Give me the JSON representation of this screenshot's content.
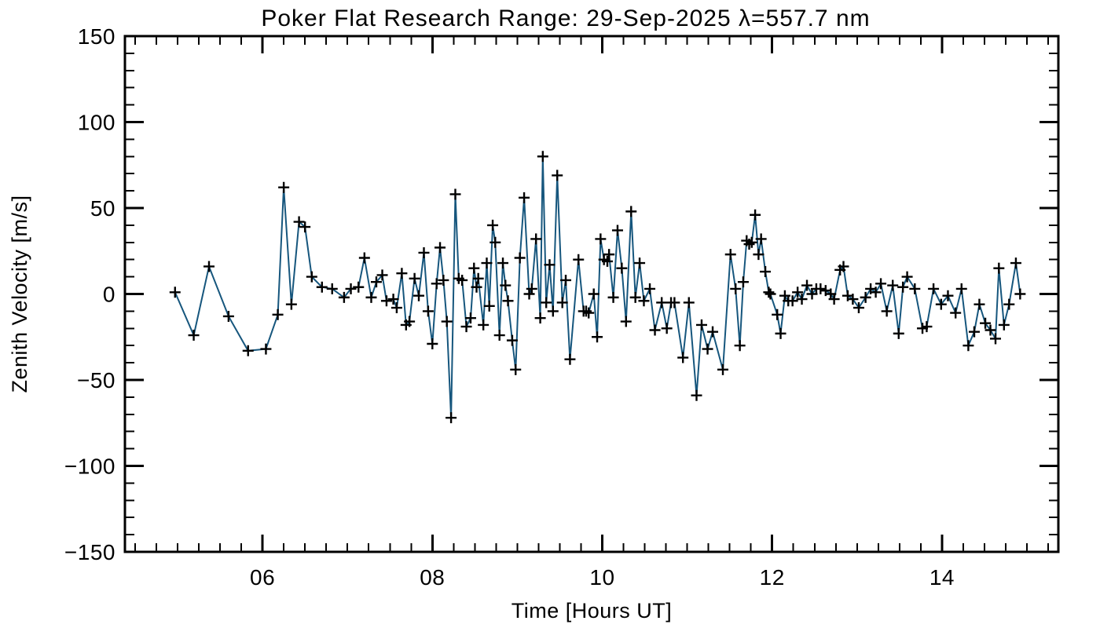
{
  "figure": {
    "background": "#ffffff"
  },
  "chart_data": {
    "type": "line",
    "title": "Poker Flat Research Range: 29-Sep-2025 λ=557.7 nm",
    "xlabel": "Time [Hours UT]",
    "ylabel": "Zenith Velocity [m/s]",
    "xlim": [
      4.38,
      15.37
    ],
    "ylim": [
      -150,
      150
    ],
    "xticks": [
      6,
      8,
      10,
      12,
      14
    ],
    "xtick_labels": [
      "06",
      "08",
      "10",
      "12",
      "14"
    ],
    "x_minor_step": 0.25,
    "yticks": [
      -150,
      -100,
      -50,
      0,
      50,
      100,
      150
    ],
    "ytick_labels": [
      "−150",
      "−100",
      "−50",
      "0",
      "50",
      "100",
      "150"
    ],
    "y_minor_step": 10,
    "grid": false,
    "legend_position": "none",
    "marker": "plus",
    "marker_color": "#000000",
    "line_color": "#16567d",
    "axis_color": "#000000",
    "series": [
      {
        "name": "zenith-velocity",
        "x": [
          4.97,
          5.19,
          5.37,
          5.6,
          5.83,
          6.04,
          6.18,
          6.25,
          6.34,
          6.43,
          6.5,
          6.58,
          6.7,
          6.82,
          6.96,
          7.04,
          7.13,
          7.2,
          7.28,
          7.34,
          7.41,
          7.46,
          7.54,
          7.58,
          7.64,
          7.69,
          7.73,
          7.79,
          7.84,
          7.9,
          7.95,
          8.0,
          8.05,
          8.09,
          8.13,
          8.17,
          8.22,
          8.27,
          8.31,
          8.35,
          8.4,
          8.45,
          8.49,
          8.52,
          8.54,
          8.6,
          8.64,
          8.67,
          8.71,
          8.74,
          8.79,
          8.83,
          8.86,
          8.89,
          8.94,
          8.98,
          9.03,
          9.08,
          9.14,
          9.17,
          9.22,
          9.27,
          9.3,
          9.34,
          9.38,
          9.42,
          9.47,
          9.53,
          9.57,
          9.62,
          9.72,
          9.78,
          9.81,
          9.84,
          9.9,
          9.94,
          9.98,
          10.02,
          10.06,
          10.08,
          10.13,
          10.18,
          10.23,
          10.28,
          10.34,
          10.39,
          10.44,
          10.49,
          10.56,
          10.62,
          10.7,
          10.76,
          10.81,
          10.85,
          10.95,
          11.02,
          11.11,
          11.17,
          11.24,
          11.3,
          11.42,
          11.51,
          11.57,
          11.62,
          11.66,
          11.7,
          11.73,
          11.76,
          11.8,
          11.84,
          11.87,
          11.92,
          11.96,
          11.98,
          12.06,
          12.1,
          12.15,
          12.19,
          12.24,
          12.3,
          12.35,
          12.41,
          12.47,
          12.52,
          12.57,
          12.63,
          12.69,
          12.73,
          12.8,
          12.84,
          12.89,
          12.95,
          13.02,
          13.1,
          13.16,
          13.22,
          13.28,
          13.35,
          13.42,
          13.49,
          13.54,
          13.59,
          13.68,
          13.77,
          13.82,
          13.9,
          13.99,
          14.07,
          14.16,
          14.23,
          14.31,
          14.38,
          14.44,
          14.51,
          14.57,
          14.63,
          14.67,
          14.73,
          14.79,
          14.87,
          14.92
        ],
        "y": [
          1,
          -24,
          16,
          -13,
          -33,
          -32,
          -12,
          62,
          -6,
          42,
          39,
          10,
          4,
          3,
          -2,
          3,
          4,
          21,
          -2,
          7,
          11,
          -4,
          -3,
          -8,
          12,
          -18,
          -16,
          9,
          -1,
          24,
          -10,
          -29,
          6,
          27,
          8,
          -16,
          -72,
          58,
          9,
          8,
          -19,
          -14,
          15,
          4,
          9,
          -18,
          18,
          -7,
          40,
          30,
          -24,
          18,
          5,
          -4,
          -27,
          -44,
          21,
          56,
          0,
          3,
          32,
          -14,
          80,
          -5,
          17,
          -10,
          69,
          -5,
          8,
          -38,
          20,
          -10,
          -10,
          -11,
          0,
          -25,
          32,
          20,
          19,
          23,
          -2,
          37,
          15,
          -16,
          48,
          -2,
          18,
          -4,
          3,
          -21,
          -5,
          -20,
          -5,
          -5,
          -37,
          -5,
          -59,
          -18,
          -32,
          -22,
          -44,
          23,
          3,
          -30,
          7,
          31,
          29,
          30,
          46,
          23,
          32,
          13,
          1,
          0,
          -12,
          -23,
          -1,
          -4,
          -4,
          1,
          -3,
          5,
          0,
          3,
          3,
          2,
          0,
          -3,
          14,
          16,
          -1,
          -3,
          -8,
          -2,
          3,
          1,
          6,
          -10,
          5,
          -23,
          4,
          10,
          3,
          -20,
          -19,
          3,
          -6,
          -1,
          -11,
          3,
          -30,
          -22,
          -6,
          -17,
          -21,
          -26,
          15,
          -18,
          -6,
          18,
          0
        ]
      }
    ]
  }
}
